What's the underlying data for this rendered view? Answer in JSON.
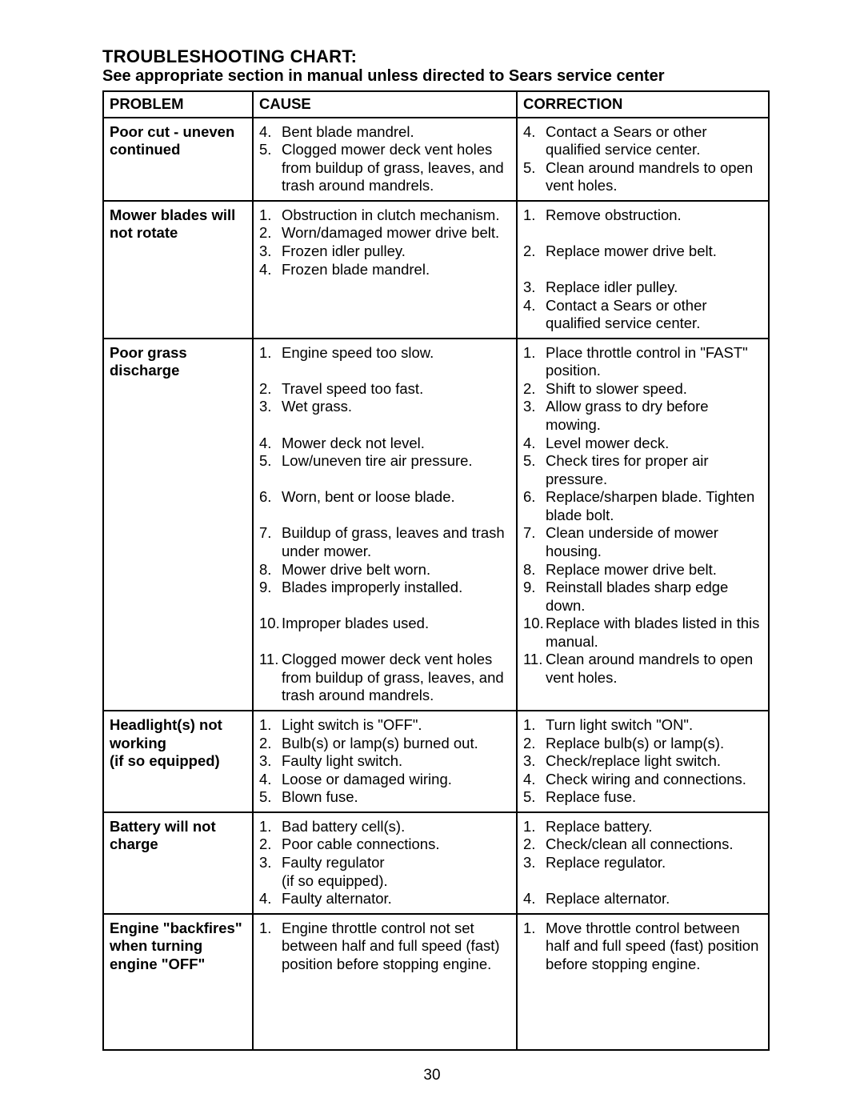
{
  "title": "TROUBLESHOOTING CHART:",
  "subtitle": "See appropriate section in manual unless directed to Sears service center",
  "page_number": "30",
  "headers": {
    "problem": "PROBLEM",
    "cause": "CAUSE",
    "correction": "CORRECTION"
  },
  "rows": [
    {
      "problem": "Poor cut - uneven continued",
      "causes": [
        {
          "n": "4.",
          "t": "Bent blade mandrel."
        },
        {
          "n": "5.",
          "t": "Clogged mower deck vent holes from buildup of grass, leaves, and trash around mandrels."
        }
      ],
      "corrections": [
        {
          "n": "4.",
          "t": "Contact a Sears or other qualified service center."
        },
        {
          "n": "5.",
          "t": "Clean around mandrels to open vent holes."
        }
      ]
    },
    {
      "problem": "Mower blades will not rotate",
      "causes": [
        {
          "n": "1.",
          "t": "Obstruction in clutch mechanism."
        },
        {
          "n": "2.",
          "t": "Worn/damaged mower drive belt."
        },
        {
          "n": "3.",
          "t": "Frozen idler pulley."
        },
        {
          "n": "4.",
          "t": "Frozen blade mandrel."
        }
      ],
      "corrections": [
        {
          "n": "1.",
          "t": "Remove obstruction."
        },
        {
          "n": "",
          "t": ""
        },
        {
          "n": "2.",
          "t": "Replace mower drive belt."
        },
        {
          "n": "",
          "t": ""
        },
        {
          "n": "3.",
          "t": "Replace idler pulley."
        },
        {
          "n": "4.",
          "t": "Contact a Sears or other qualified service center."
        }
      ]
    },
    {
      "problem": "Poor grass discharge",
      "causes": [
        {
          "n": "1.",
          "t": "Engine speed too slow."
        },
        {
          "n": "",
          "t": ""
        },
        {
          "n": "2.",
          "t": "Travel speed too fast."
        },
        {
          "n": "3.",
          "t": "Wet grass."
        },
        {
          "n": "",
          "t": ""
        },
        {
          "n": "4.",
          "t": "Mower deck not level."
        },
        {
          "n": "5.",
          "t": "Low/uneven tire air pressure."
        },
        {
          "n": "",
          "t": ""
        },
        {
          "n": "6.",
          "t": "Worn, bent or loose blade."
        },
        {
          "n": "",
          "t": ""
        },
        {
          "n": "7.",
          "t": "Buildup of grass, leaves and trash under mower."
        },
        {
          "n": "8.",
          "t": "Mower drive belt worn."
        },
        {
          "n": "9.",
          "t": "Blades improperly installed."
        },
        {
          "n": "",
          "t": ""
        },
        {
          "n": "10.",
          "t": "Improper blades used."
        },
        {
          "n": "",
          "t": ""
        },
        {
          "n": "11.",
          "t": "Clogged mower deck vent holes from buildup of grass, leaves, and trash around mandrels."
        }
      ],
      "corrections": [
        {
          "n": "1.",
          "t": "Place throttle control in \"FAST\" position."
        },
        {
          "n": "2.",
          "t": "Shift to slower speed."
        },
        {
          "n": "3.",
          "t": "Allow grass to dry before mowing."
        },
        {
          "n": "4.",
          "t": "Level mower deck."
        },
        {
          "n": "5.",
          "t": "Check tires for proper air pressure."
        },
        {
          "n": "6.",
          "t": "Replace/sharpen blade. Tighten blade bolt."
        },
        {
          "n": "7.",
          "t": "Clean underside of mower housing."
        },
        {
          "n": "8.",
          "t": "Replace mower drive belt."
        },
        {
          "n": "9.",
          "t": "Reinstall blades sharp edge down."
        },
        {
          "n": "10.",
          "t": "Replace with blades listed in this manual."
        },
        {
          "n": "11.",
          "t": "Clean around mandrels to open vent holes."
        }
      ]
    },
    {
      "problem": "Headlight(s) not working\n(if so equipped)",
      "causes": [
        {
          "n": "1.",
          "t": "Light switch is \"OFF\"."
        },
        {
          "n": "2.",
          "t": "Bulb(s) or lamp(s) burned out."
        },
        {
          "n": "3.",
          "t": "Faulty light switch."
        },
        {
          "n": "4.",
          "t": "Loose or damaged wiring."
        },
        {
          "n": "5.",
          "t": "Blown fuse."
        }
      ],
      "corrections": [
        {
          "n": "1.",
          "t": "Turn light switch \"ON\"."
        },
        {
          "n": "2.",
          "t": "Replace bulb(s) or lamp(s)."
        },
        {
          "n": "3.",
          "t": "Check/replace light switch."
        },
        {
          "n": "4.",
          "t": "Check wiring and connections."
        },
        {
          "n": "5.",
          "t": "Replace fuse."
        }
      ]
    },
    {
      "problem": "Battery will not charge",
      "causes": [
        {
          "n": "1.",
          "t": "Bad battery cell(s)."
        },
        {
          "n": "2.",
          "t": "Poor cable connections."
        },
        {
          "n": "3.",
          "t": "Faulty regulator\n(if so equipped)."
        },
        {
          "n": "4.",
          "t": "Faulty alternator."
        }
      ],
      "corrections": [
        {
          "n": "1.",
          "t": "Replace battery."
        },
        {
          "n": "2.",
          "t": "Check/clean all connections."
        },
        {
          "n": "3.",
          "t": "Replace regulator."
        },
        {
          "n": "",
          "t": ""
        },
        {
          "n": "4.",
          "t": "Replace alternator."
        }
      ]
    },
    {
      "problem": "Engine \"backfires\" when turning engine \"OFF\"",
      "causes": [
        {
          "n": "1.",
          "t": "Engine throttle control not set between half and full speed (fast) position before stopping engine."
        }
      ],
      "corrections": [
        {
          "n": "1.",
          "t": "Move throttle control between half and full speed (fast) position before stopping engine."
        }
      ],
      "extra_pad": true
    }
  ]
}
